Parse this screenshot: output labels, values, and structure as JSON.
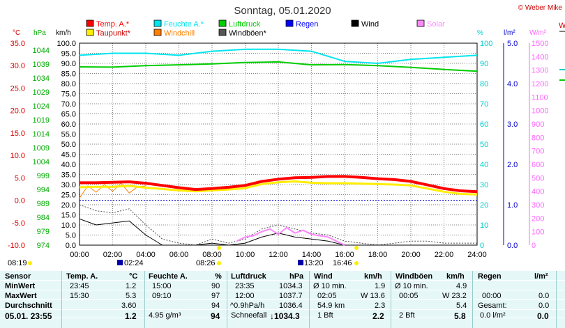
{
  "title": "Sonntag, 05.01.2020",
  "copyright": "© Weber Mike",
  "legend": [
    {
      "label": "Temp. A.*",
      "color": "#ff0000"
    },
    {
      "label": "Feuchte A.*",
      "color": "#00e5ee"
    },
    {
      "label": "Luftdruck",
      "color": "#00cc00"
    },
    {
      "label": "Regen",
      "color": "#0000ff"
    },
    {
      "label": "Wind",
      "color": "#000000"
    },
    {
      "label": "Solar",
      "color": "#ff88ff"
    },
    {
      "label": "Taupunkt*",
      "color": "#ffee00"
    },
    {
      "label": "Windchill",
      "color": "#ff8000"
    },
    {
      "label": "Windböen*",
      "color": "#555555"
    }
  ],
  "axis_units": {
    "temp": "°C",
    "pressure": "hPa",
    "wind": "km/h",
    "humidity": "%",
    "rain": "l/m²",
    "solar": "W/m²"
  },
  "right_clip_label": "W",
  "chart_data": {
    "type": "line",
    "x_ticks": [
      "00:00",
      "02:00",
      "04:00",
      "06:00",
      "08:00",
      "10:00",
      "12:00",
      "14:00",
      "16:00",
      "18:00",
      "20:00",
      "22:00",
      "24:00"
    ],
    "temp_ticks": [
      "35.0",
      "30.0",
      "25.0",
      "20.0",
      "15.0",
      "10.0",
      "5.0",
      "0.0",
      "-5.0",
      "-10.0"
    ],
    "pressure_ticks": [
      "1044",
      "1039",
      "1034",
      "1029",
      "1024",
      "1019",
      "1014",
      "1009",
      "1004",
      "999",
      "994",
      "989",
      "984",
      "979",
      "974"
    ],
    "wind_ticks": [
      "100.0",
      "95.0",
      "90.0",
      "85.0",
      "80.0",
      "75.0",
      "70.0",
      "65.0",
      "60.0",
      "55.0",
      "50.0",
      "45.0",
      "40.0",
      "35.0",
      "30.0",
      "25.0",
      "20.0",
      "15.0",
      "10.0",
      "5.0",
      "0.0"
    ],
    "humidity_ticks": [
      "100",
      "90",
      "80",
      "70",
      "60",
      "50",
      "40",
      "30",
      "20",
      "10",
      "0"
    ],
    "rain_ticks": [
      "5.0",
      "4.0",
      "3.0",
      "2.0",
      "1.0",
      "0.0"
    ],
    "solar_ticks": [
      "1500",
      "1400",
      "1300",
      "1200",
      "1100",
      "1000",
      "900",
      "800",
      "700",
      "600",
      "500",
      "400",
      "300",
      "200",
      "100",
      "0"
    ],
    "temp_range": [
      -10,
      35
    ],
    "series": [
      {
        "name": "Temp. A.*",
        "axis": "temp",
        "x": [
          0,
          1,
          2,
          3,
          4,
          5,
          6,
          7,
          8,
          9,
          10,
          11,
          12,
          13,
          14,
          15,
          16,
          17,
          18,
          19,
          20,
          21,
          22,
          23,
          24
        ],
        "y": [
          3.9,
          3.9,
          4.0,
          4.1,
          3.8,
          3.3,
          2.8,
          2.4,
          2.6,
          2.9,
          3.3,
          4.2,
          4.7,
          5.0,
          5.1,
          5.3,
          5.3,
          5.1,
          4.8,
          4.6,
          4.2,
          3.4,
          2.6,
          2.1,
          1.9
        ]
      },
      {
        "name": "Taupunkt*",
        "axis": "temp",
        "x": [
          0,
          1,
          2,
          3,
          4,
          5,
          6,
          7,
          8,
          9,
          10,
          11,
          12,
          13,
          14,
          15,
          16,
          17,
          18,
          19,
          20,
          21,
          22,
          23,
          24
        ],
        "y": [
          2.9,
          3.0,
          3.0,
          3.2,
          2.8,
          2.5,
          2.2,
          2.0,
          2.2,
          2.4,
          2.7,
          3.6,
          4.0,
          4.2,
          3.9,
          3.8,
          3.8,
          3.7,
          3.6,
          3.5,
          3.3,
          2.6,
          1.9,
          1.4,
          1.3
        ]
      },
      {
        "name": "Windchill",
        "axis": "temp",
        "x": [
          0,
          0.5,
          1,
          1.5,
          2,
          2.5,
          3,
          3.5,
          4
        ],
        "y": [
          0.5,
          3.2,
          1.8,
          3.5,
          2.0,
          3.8,
          1.6,
          3.0,
          3.2
        ]
      },
      {
        "name": "Feuchte A.*",
        "axis": "humidity",
        "x": [
          0,
          2,
          4,
          6,
          8,
          10,
          12,
          14,
          16,
          18,
          20,
          22,
          24
        ],
        "y": [
          94,
          95,
          95,
          94,
          96,
          97,
          97,
          96,
          91,
          90,
          92,
          93,
          94
        ]
      },
      {
        "name": "Luftdruck",
        "axis": "pressure",
        "x": [
          0,
          2,
          4,
          6,
          8,
          10,
          12,
          14,
          16,
          18,
          20,
          22,
          24
        ],
        "y": [
          1035.8,
          1035.7,
          1036.2,
          1036.5,
          1036.8,
          1037.3,
          1037.5,
          1036.5,
          1036.6,
          1036.2,
          1035.6,
          1034.9,
          1034.3
        ]
      },
      {
        "name": "Wind",
        "axis": "wind",
        "x": [
          0,
          1,
          2,
          3,
          4,
          5,
          6,
          7,
          8,
          9,
          10,
          11,
          12,
          13,
          14,
          15,
          16,
          17,
          18,
          19,
          20,
          21,
          22,
          23,
          24
        ],
        "y": [
          13,
          10,
          11,
          12,
          5,
          0,
          0,
          0,
          1,
          0,
          1,
          4,
          6,
          4,
          3,
          2,
          0,
          0,
          0,
          0,
          0,
          0,
          0,
          0,
          0
        ]
      },
      {
        "name": "Windböen*",
        "axis": "wind",
        "x": [
          0,
          1,
          2,
          3,
          4,
          5,
          6,
          7,
          8,
          9,
          10,
          11,
          12,
          13,
          14,
          15,
          16,
          17,
          18,
          19,
          20,
          21,
          22,
          23,
          24
        ],
        "y": [
          20,
          17,
          16,
          18,
          10,
          3,
          1,
          0,
          3,
          1,
          3,
          8,
          10,
          8,
          6,
          5,
          2,
          1,
          0,
          1,
          2,
          2,
          1,
          1,
          1
        ]
      },
      {
        "name": "Solar",
        "axis": "solar",
        "x": [
          9.5,
          10,
          10.5,
          11,
          11.5,
          12,
          12.5,
          13,
          13.5,
          14,
          14.5,
          15,
          15.5,
          16
        ],
        "y": [
          30,
          60,
          70,
          100,
          120,
          80,
          130,
          90,
          110,
          80,
          70,
          60,
          30,
          0
        ]
      }
    ],
    "freezing_line_y": 0.0
  },
  "sun": {
    "rise_left": "08:19",
    "set_left": "08:26",
    "rise_right": "13:20",
    "set_right": "16:46",
    "moon1": "02:24"
  },
  "table": {
    "headers": {
      "sensor": "Sensor",
      "temp": "Temp. A.",
      "temp_unit": "°C",
      "hum": "Feuchte A.",
      "hum_unit": "%",
      "press": "Luftdruck",
      "press_unit": "hPa",
      "wind": "Wind",
      "wind_unit": "km/h",
      "gust": "Windböen",
      "gust_unit": "km/h",
      "rain": "Regen",
      "rain_unit": "l/m²"
    },
    "min": {
      "label": "MinWert",
      "temp_time": "23:45",
      "temp": "1.2",
      "hum_time": "15:00",
      "hum": "90",
      "press_time": "23:35",
      "press": "1034.3",
      "wind_label": "Ø 10 min.",
      "wind": "1.9",
      "gust_label": "Ø 10 min.",
      "gust": "4.9"
    },
    "max": {
      "label": "MaxWert",
      "temp_time": "15:30",
      "temp": "5.3",
      "hum_time": "09:10",
      "hum": "97",
      "press_time": "12:00",
      "press": "1037.7",
      "wind_time": "02:05",
      "wind": "W 13.6",
      "gust_time": "00:05",
      "gust": "W 23.2",
      "rain_time": "00:00",
      "rain": "0.0"
    },
    "avg": {
      "label": "Durchschnitt",
      "temp": "3.60",
      "hum": "94",
      "press_trend": "^0.9hPa/h",
      "press": "1036.4",
      "wind_km": "54.9 km",
      "wind": "2.3",
      "gust": "5.4",
      "rain_label": "Gesamt:",
      "rain": "0.0"
    },
    "now": {
      "label": "05.01. 23:55",
      "temp": "1.2",
      "hum_abs": "4.95 g/m³",
      "hum": "94",
      "press_label": "Schneefall",
      "press": "↓1034.3",
      "wind_bft": "1 Bft",
      "wind": "2.2",
      "gust_bft": "2 Bft",
      "gust": "5.8",
      "rain_rate": "0.0 l/m²",
      "rain": "0.0"
    }
  }
}
